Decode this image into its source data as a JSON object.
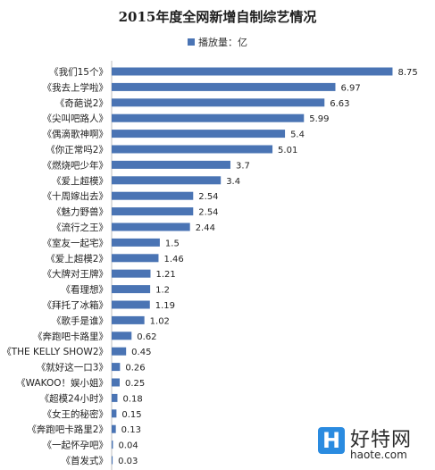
{
  "chart_data": {
    "type": "bar",
    "orientation": "horizontal",
    "title": "2015年度全网新增自制综艺情况",
    "categories": [
      "《我们15个》",
      "《我去上学啦》",
      "《奇葩说2》",
      "《尖叫吧路人》",
      "《偶滴歌神啊》",
      "《你正常吗2》",
      "《燃烧吧少年》",
      "《爱上超模》",
      "《十周嫁出去》",
      "《魅力野兽》",
      "《流行之王》",
      "《室友一起宅》",
      "《爱上超模2》",
      "《大牌对王牌》",
      "《看理想》",
      "《拜托了冰箱》",
      "《歌手是谁》",
      "《奔跑吧卡路里》",
      "《THE KELLY SHOW2》",
      "《就好这一口3》",
      "《WAKOO！娱小姐》",
      "《超模24小时》",
      "《女王的秘密》",
      "《奔跑吧卡路里2》",
      "《一起怀孕吧》",
      "《首发式》"
    ],
    "series": [
      {
        "name": "播放量：亿",
        "color": "#4a74b4",
        "values": [
          8.75,
          6.97,
          6.63,
          5.99,
          5.4,
          5.01,
          3.7,
          3.4,
          2.54,
          2.54,
          2.44,
          1.5,
          1.46,
          1.21,
          1.2,
          1.19,
          1.02,
          0.62,
          0.45,
          0.26,
          0.25,
          0.18,
          0.15,
          0.13,
          0.04,
          0.03
        ],
        "value_labels": [
          "8.75",
          "6.97",
          "6.63",
          "5.99",
          "5.4",
          "5.01",
          "3.7",
          "3.4",
          "2.54",
          "2.54",
          "2.44",
          "1.5",
          "1.46",
          "1.21",
          "1.2",
          "1.19",
          "1.02",
          "0.62",
          "0.45",
          "0.26",
          "0.25",
          "0.18",
          "0.15",
          "0.13",
          "0.04",
          "0.03"
        ]
      }
    ],
    "xlim": [
      0,
      9.6
    ],
    "grid": false,
    "legend": "top"
  },
  "watermark": {
    "logo_letter": "H",
    "name": "好特网",
    "url": "haote.com"
  }
}
